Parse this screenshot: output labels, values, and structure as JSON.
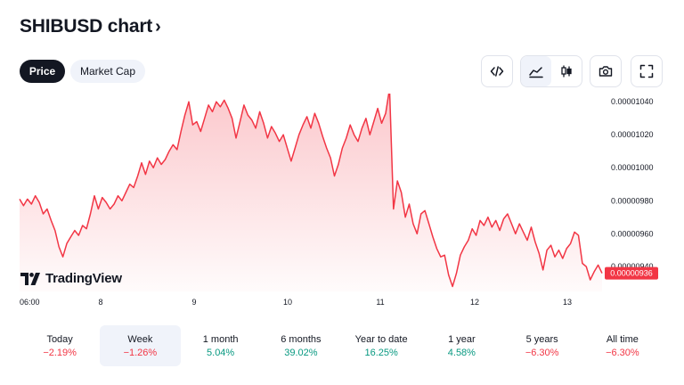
{
  "header": {
    "title": "SHIBUSD chart",
    "chevron": "›"
  },
  "tabs": [
    {
      "label": "Price",
      "active": true
    },
    {
      "label": "Market Cap",
      "active": false
    }
  ],
  "toolbar": {
    "embed_icon": "code-icon",
    "area_icon": "area-chart-icon",
    "candles_icon": "candlestick-icon",
    "snapshot_icon": "camera-icon",
    "fullscreen_icon": "fullscreen-icon",
    "active_style": "area"
  },
  "branding": {
    "logo_text": "TradingView"
  },
  "chart_data": {
    "type": "area",
    "symbol": "SHIBUSD",
    "line_color": "#f23645",
    "x_tick_labels": [
      "06:00",
      "8",
      "9",
      "10",
      "11",
      "12",
      "13"
    ],
    "y_tick_labels": [
      "0.00001040",
      "0.00001020",
      "0.00001000",
      "0.00000980",
      "0.00000960",
      "0.00000940"
    ],
    "ylim": [
      9.25e-06,
      1.045e-05
    ],
    "last_price": "0.00000936",
    "series": [
      {
        "values": [
          9.81e-06,
          9.77e-06,
          9.81e-06,
          9.78e-06,
          9.83e-06,
          9.79e-06,
          9.72e-06,
          9.75e-06,
          9.68e-06,
          9.62e-06,
          9.52e-06,
          9.46e-06,
          9.54e-06,
          9.58e-06,
          9.62e-06,
          9.59e-06,
          9.65e-06,
          9.63e-06,
          9.72e-06,
          9.83e-06,
          9.75e-06,
          9.82e-06,
          9.79e-06,
          9.75e-06,
          9.78e-06,
          9.83e-06,
          9.8e-06,
          9.85e-06,
          9.9e-06,
          9.88e-06,
          9.95e-06,
          1.003e-05,
          9.96e-06,
          1.004e-05,
          1e-05,
          1.006e-05,
          1.002e-05,
          1.005e-05,
          1.01e-05,
          1.014e-05,
          1.011e-05,
          1.022e-05,
          1.032e-05,
          1.04e-05,
          1.026e-05,
          1.028e-05,
          1.022e-05,
          1.03e-05,
          1.038e-05,
          1.034e-05,
          1.04e-05,
          1.037e-05,
          1.041e-05,
          1.036e-05,
          1.03e-05,
          1.018e-05,
          1.028e-05,
          1.038e-05,
          1.032e-05,
          1.029e-05,
          1.024e-05,
          1.034e-05,
          1.027e-05,
          1.018e-05,
          1.025e-05,
          1.021e-05,
          1.016e-05,
          1.02e-05,
          1.012e-05,
          1.004e-05,
          1.012e-05,
          1.02e-05,
          1.026e-05,
          1.031e-05,
          1.024e-05,
          1.033e-05,
          1.027e-05,
          1.019e-05,
          1.012e-05,
          1.006e-05,
          9.95e-06,
          1.002e-05,
          1.012e-05,
          1.018e-05,
          1.026e-05,
          1.02e-05,
          1.016e-05,
          1.024e-05,
          1.03e-05,
          1.02e-05,
          1.028e-05,
          1.036e-05,
          1.027e-05,
          1.033e-05,
          1.048e-05,
          9.75e-06,
          9.92e-06,
          9.85e-06,
          9.7e-06,
          9.78e-06,
          9.66e-06,
          9.6e-06,
          9.72e-06,
          9.74e-06,
          9.66e-06,
          9.58e-06,
          9.51e-06,
          9.46e-06,
          9.47e-06,
          9.35e-06,
          9.28e-06,
          9.36e-06,
          9.47e-06,
          9.52e-06,
          9.56e-06,
          9.63e-06,
          9.59e-06,
          9.68e-06,
          9.65e-06,
          9.7e-06,
          9.64e-06,
          9.68e-06,
          9.62e-06,
          9.69e-06,
          9.72e-06,
          9.66e-06,
          9.6e-06,
          9.66e-06,
          9.61e-06,
          9.56e-06,
          9.64e-06,
          9.55e-06,
          9.48e-06,
          9.38e-06,
          9.5e-06,
          9.53e-06,
          9.46e-06,
          9.5e-06,
          9.45e-06,
          9.51e-06,
          9.54e-06,
          9.61e-06,
          9.59e-06,
          9.42e-06,
          9.4e-06,
          9.32e-06,
          9.37e-06,
          9.41e-06,
          9.36e-06
        ]
      }
    ],
    "grid": false
  },
  "periods": [
    {
      "name": "Today",
      "change": "−2.19%",
      "trend": "down",
      "active": false
    },
    {
      "name": "Week",
      "change": "−1.26%",
      "trend": "down",
      "active": true
    },
    {
      "name": "1 month",
      "change": "5.04%",
      "trend": "up",
      "active": false
    },
    {
      "name": "6 months",
      "change": "39.02%",
      "trend": "up",
      "active": false
    },
    {
      "name": "Year to date",
      "change": "16.25%",
      "trend": "up",
      "active": false
    },
    {
      "name": "1 year",
      "change": "4.58%",
      "trend": "up",
      "active": false
    },
    {
      "name": "5 years",
      "change": "−6.30%",
      "trend": "down",
      "active": false
    },
    {
      "name": "All time",
      "change": "−6.30%",
      "trend": "down",
      "active": false
    }
  ]
}
